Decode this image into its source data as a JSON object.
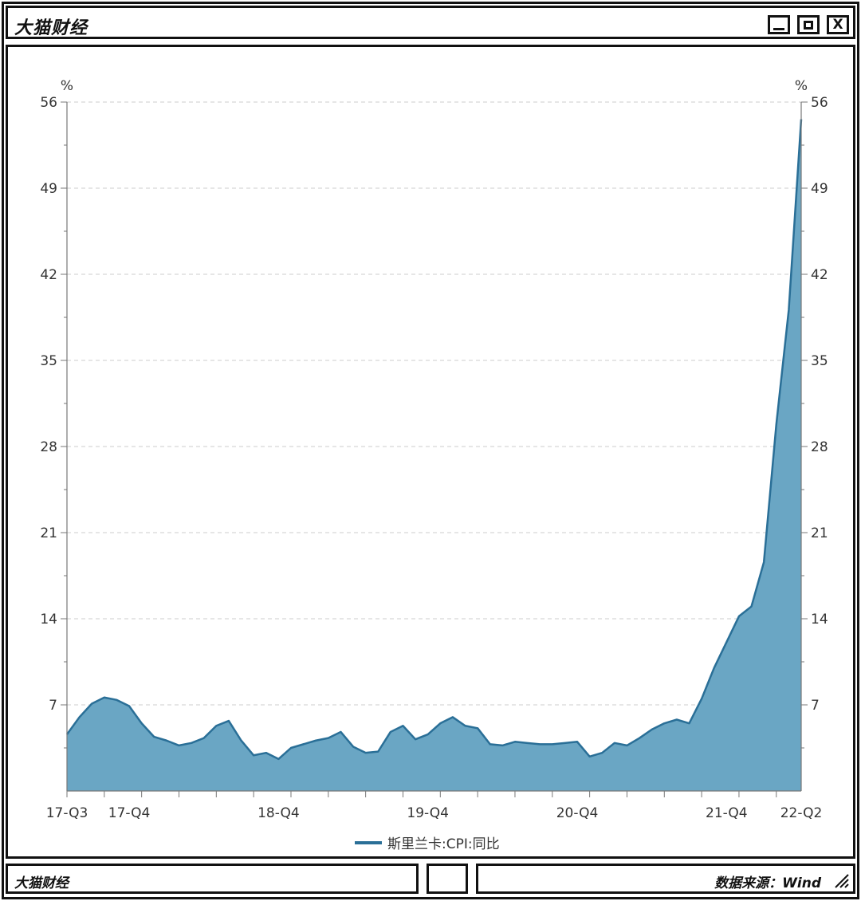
{
  "window": {
    "title": "大猫财经"
  },
  "controls": {
    "minimize": "",
    "maximize": "",
    "close": "X"
  },
  "status": {
    "left": "大猫财经",
    "right": "数据来源：Wind"
  },
  "chart_data": {
    "type": "area",
    "title": "",
    "xlabel": "",
    "ylabel": "%",
    "ylabel_right": "%",
    "ylim": [
      0,
      56
    ],
    "yticks": [
      7,
      14,
      21,
      28,
      35,
      42,
      49,
      56
    ],
    "x_tick_labels": [
      "17-Q3",
      "17-Q4",
      "18-Q4",
      "19-Q4",
      "20-Q4",
      "21-Q4",
      "22-Q2"
    ],
    "x_tick_indices": [
      0,
      5,
      17,
      29,
      41,
      53,
      59
    ],
    "grid": true,
    "legend_position": "bottom-center",
    "colors": {
      "line": "#2a6f97",
      "fill": "#6aa6c4",
      "grid": "#cccccc",
      "axis": "#777777"
    },
    "series": [
      {
        "name": "斯里兰卡:CPI:同比",
        "values": [
          4.6,
          6.0,
          7.1,
          7.6,
          7.4,
          6.9,
          5.5,
          4.4,
          4.1,
          3.7,
          3.9,
          4.3,
          5.3,
          5.7,
          4.1,
          2.9,
          3.1,
          2.6,
          3.5,
          3.8,
          4.1,
          4.3,
          4.8,
          3.6,
          3.1,
          3.2,
          4.8,
          5.3,
          4.2,
          4.6,
          5.5,
          6.0,
          5.3,
          5.1,
          3.8,
          3.7,
          4.0,
          3.9,
          3.8,
          3.8,
          3.9,
          4.0,
          2.8,
          3.1,
          3.9,
          3.7,
          4.3,
          5.0,
          5.5,
          5.8,
          5.5,
          7.5,
          10.0,
          12.1,
          14.2,
          15.0,
          18.6,
          29.8,
          39.1,
          54.6
        ]
      }
    ]
  }
}
